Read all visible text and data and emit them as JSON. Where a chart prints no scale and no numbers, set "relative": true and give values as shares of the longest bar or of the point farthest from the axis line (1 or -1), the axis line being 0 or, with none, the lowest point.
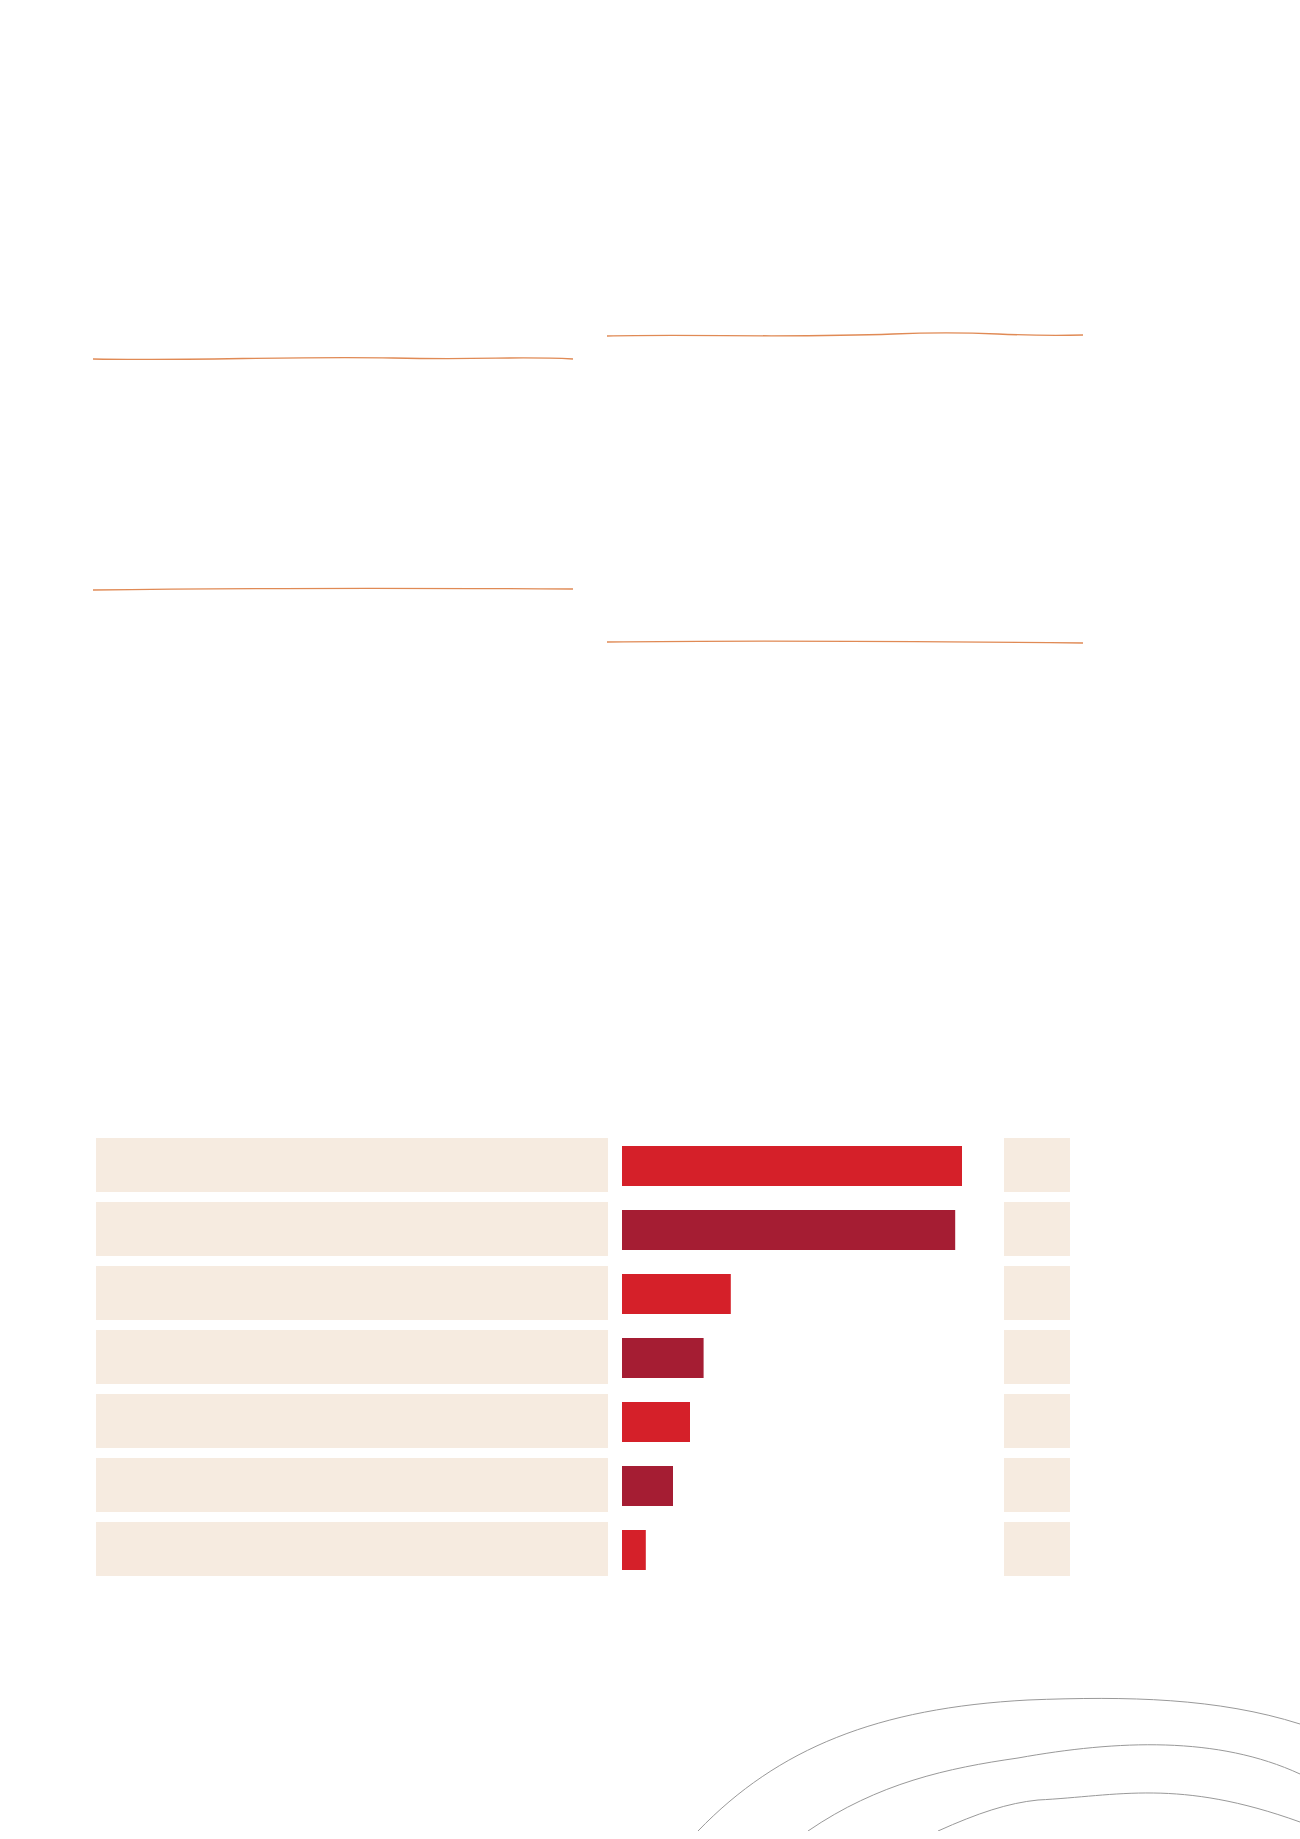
{
  "chart_data": {
    "type": "bar",
    "orientation": "horizontal",
    "relative": true,
    "categories": [
      null,
      null,
      null,
      null,
      null,
      null,
      null
    ],
    "values": [
      1,
      0.98,
      0.32,
      0.24,
      0.2,
      0.15,
      0.07
    ],
    "colors": [
      "#d52029",
      "#a51d33",
      "#d52029",
      "#a51d33",
      "#d52029",
      "#a51d33",
      "#d52029"
    ]
  }
}
